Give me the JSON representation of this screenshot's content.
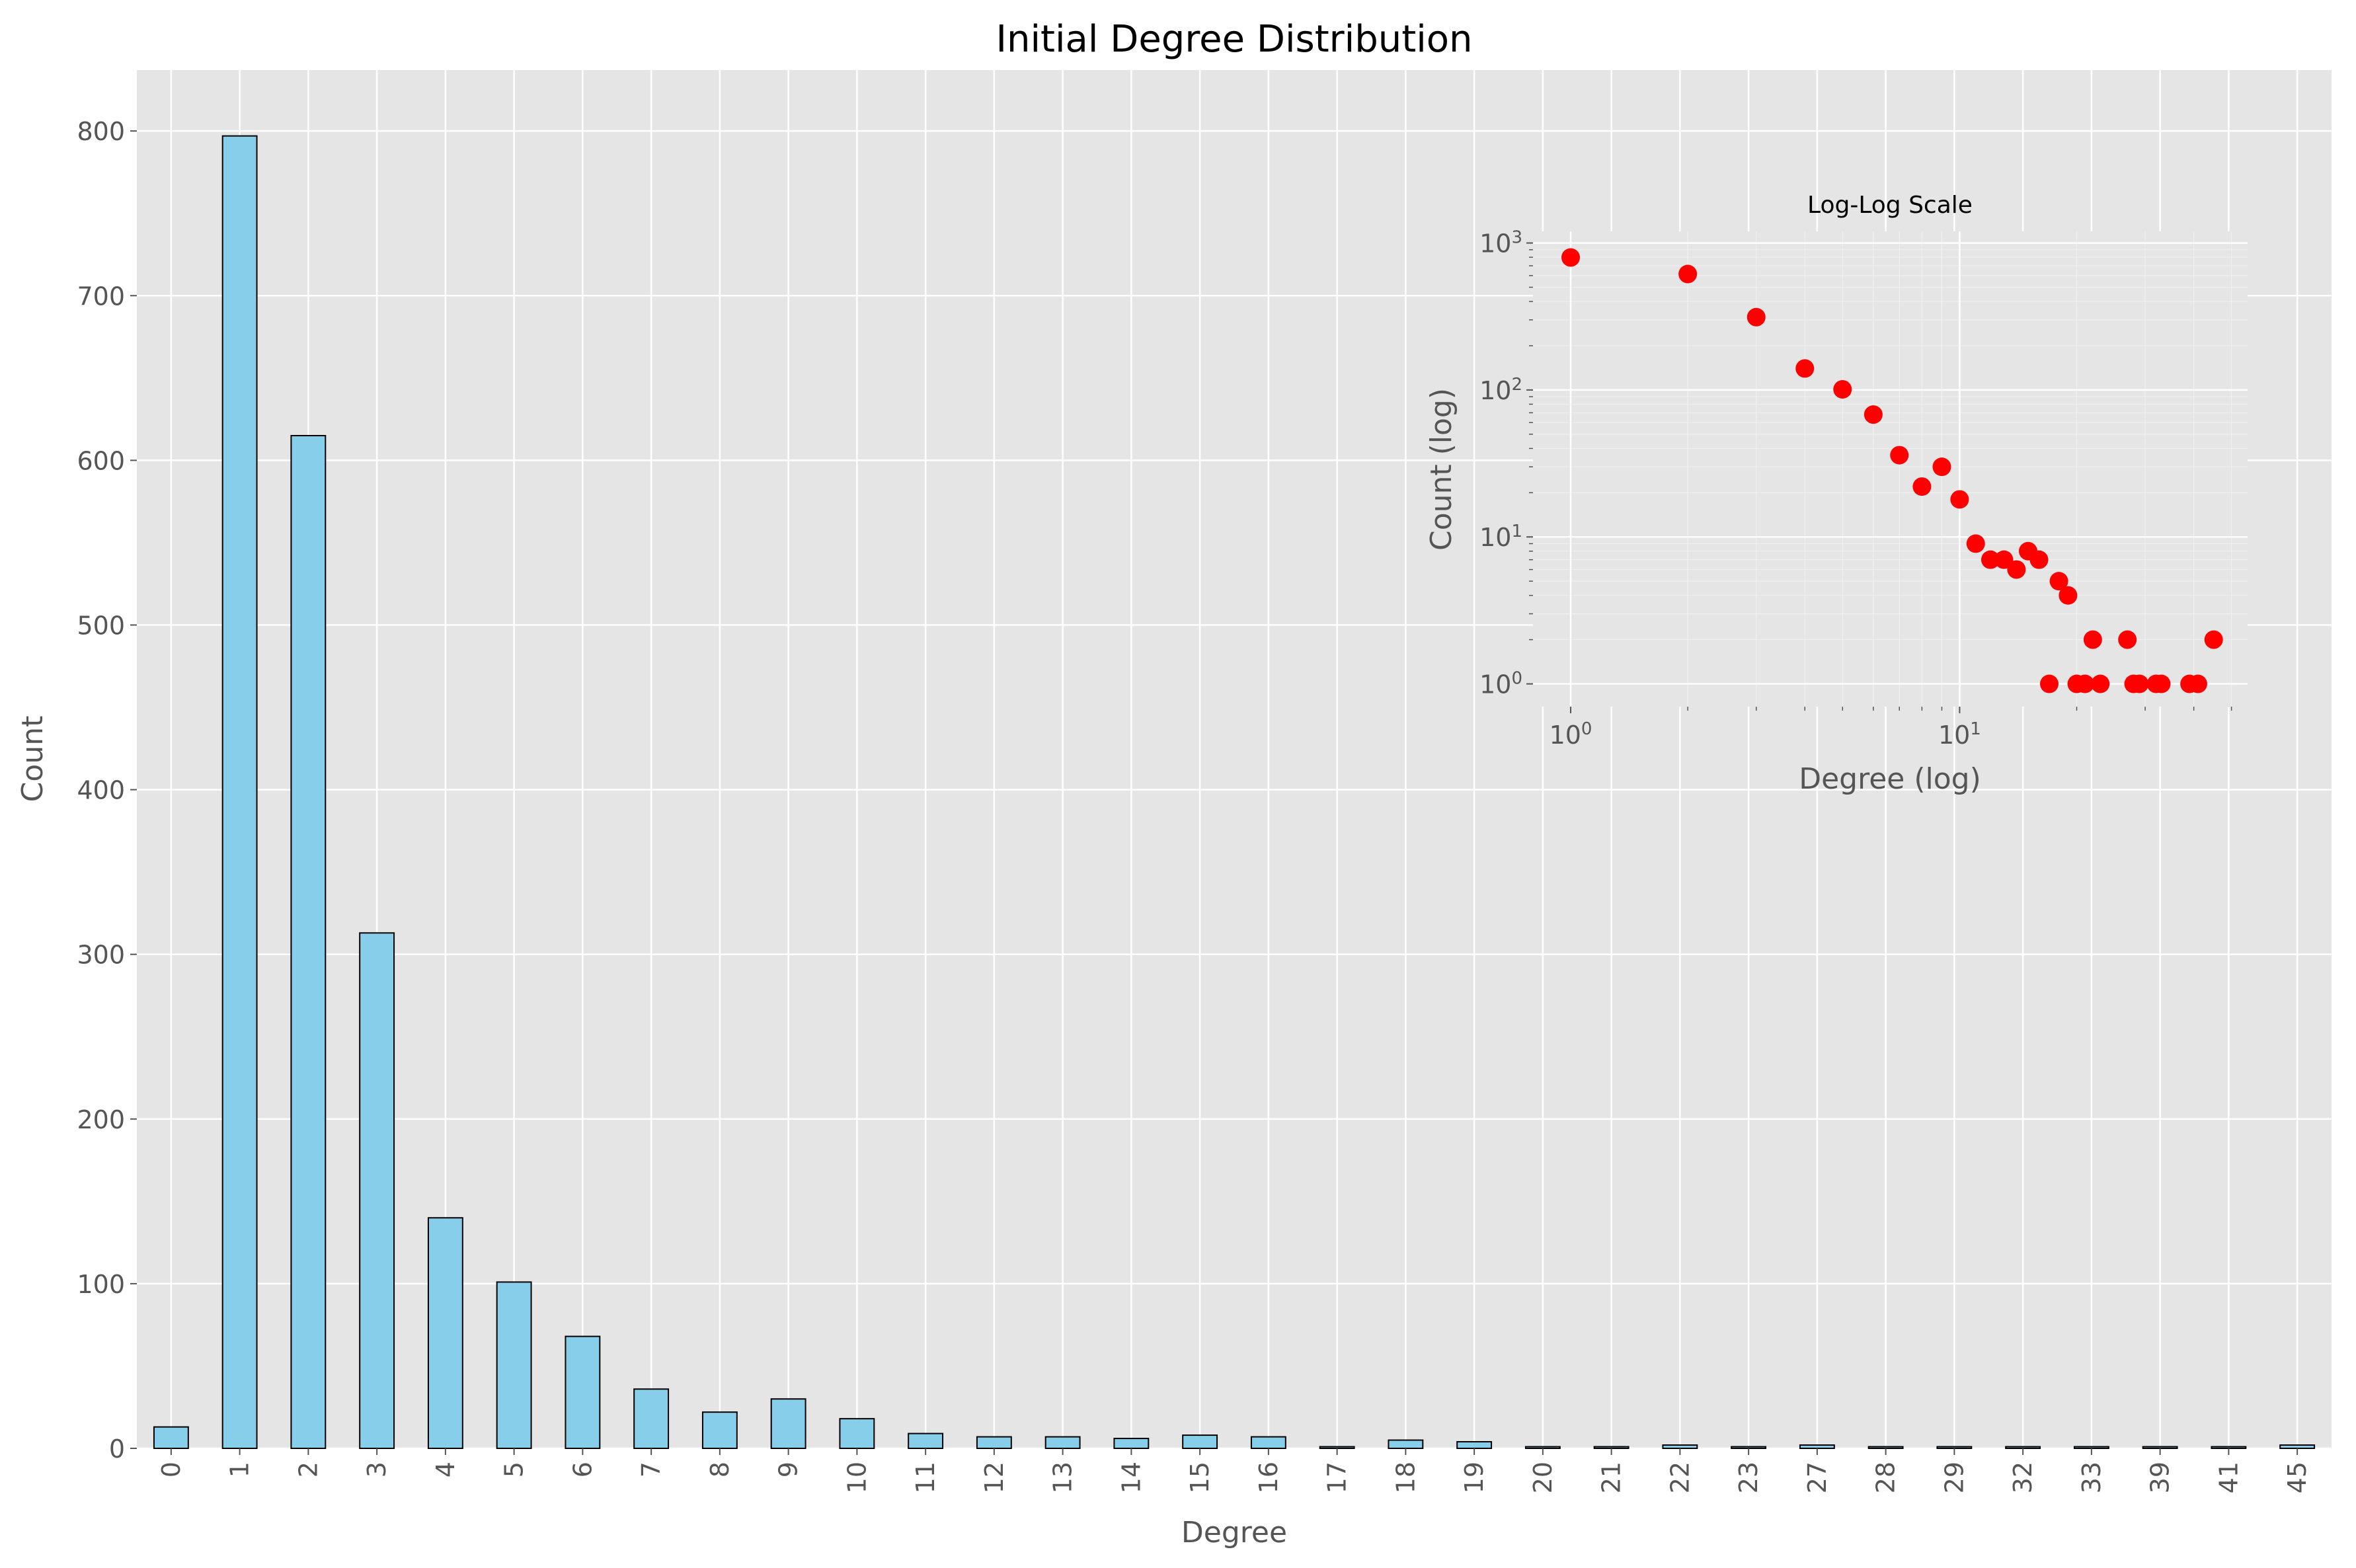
{
  "chart_data": [
    {
      "type": "bar",
      "title": "Initial Degree Distribution",
      "xlabel": "Degree",
      "ylabel": "Count",
      "categories": [
        "0",
        "1",
        "2",
        "3",
        "4",
        "5",
        "6",
        "7",
        "8",
        "9",
        "10",
        "11",
        "12",
        "13",
        "14",
        "15",
        "16",
        "17",
        "18",
        "19",
        "20",
        "21",
        "22",
        "23",
        "27",
        "28",
        "29",
        "32",
        "33",
        "39",
        "41",
        "45"
      ],
      "values": [
        13,
        797,
        615,
        313,
        140,
        101,
        68,
        36,
        22,
        30,
        18,
        9,
        7,
        7,
        6,
        8,
        7,
        1,
        5,
        4,
        1,
        1,
        2,
        1,
        2,
        1,
        1,
        1,
        1,
        1,
        1,
        2
      ],
      "ylim": [
        0,
        837
      ],
      "yticks": [
        0,
        100,
        200,
        300,
        400,
        500,
        600,
        700,
        800
      ],
      "grid": true,
      "colors": {
        "bar_fill": "#87ceeb",
        "bar_edge": "#000000",
        "plot_bg": "#e5e5e5",
        "grid": "#ffffff",
        "text": "#555555"
      }
    },
    {
      "type": "scatter",
      "title": "Log-Log Scale",
      "xlabel": "Degree (log)",
      "ylabel": "Count (log)",
      "xscale": "log",
      "yscale": "log",
      "xlim": [
        0.8,
        55
      ],
      "ylim": [
        0.7,
        1200
      ],
      "xtick_labels": [
        "10^0",
        "10^1"
      ],
      "ytick_labels": [
        "10^0",
        "10^1",
        "10^2",
        "10^3"
      ],
      "x": [
        1,
        2,
        3,
        4,
        5,
        6,
        7,
        8,
        9,
        10,
        11,
        12,
        13,
        14,
        15,
        16,
        17,
        18,
        19,
        20,
        21,
        22,
        23,
        27,
        28,
        29,
        32,
        33,
        39,
        41,
        45
      ],
      "y": [
        797,
        615,
        313,
        140,
        101,
        68,
        36,
        22,
        30,
        18,
        9,
        7,
        7,
        6,
        8,
        7,
        1,
        5,
        4,
        1,
        1,
        2,
        1,
        2,
        1,
        1,
        1,
        1,
        1,
        1,
        2
      ],
      "grid": true,
      "colors": {
        "marker": "#ff0000",
        "plot_bg": "#e5e5e5",
        "grid": "#ffffff"
      }
    }
  ]
}
